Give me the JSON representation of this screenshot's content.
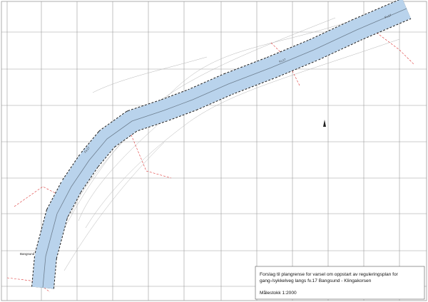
{
  "map": {
    "title_lines": [
      "Forslag til plangrense for varsel om oppstart av reguleringsplan for",
      "gang-/sykkelveg langs fv.17 Bangsund - Klingakorsen"
    ],
    "scale": "Målestokk 1:2000",
    "place_labels": [
      "Bangsund"
    ],
    "road_labels": [
      "Fv.17",
      "Fv.17",
      "Fv.17"
    ]
  }
}
